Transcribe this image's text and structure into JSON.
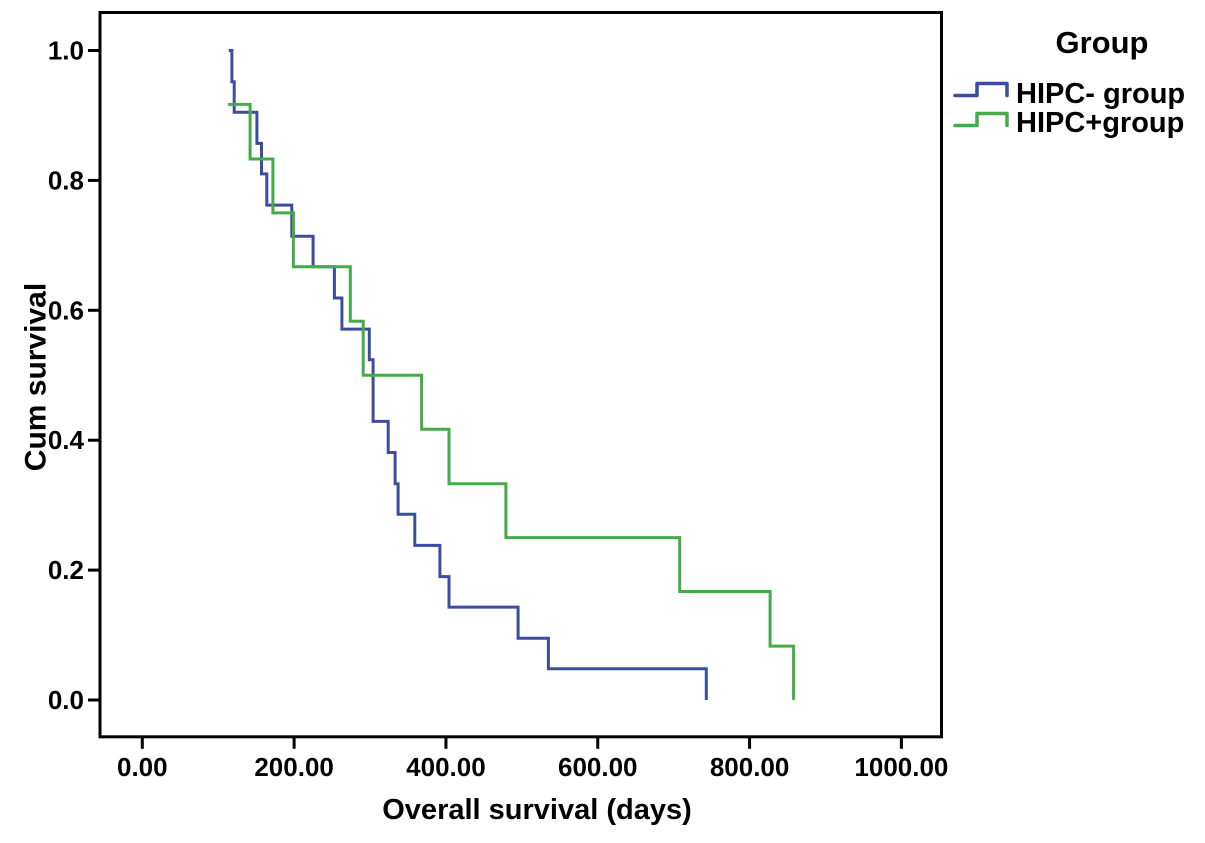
{
  "chart_data": {
    "type": "line",
    "subtype": "kaplan-meier-step-curves",
    "title": "",
    "xlabel": "Overall survival (days)",
    "ylabel": "Cum survival",
    "grid": false,
    "axis_color": "#000000",
    "x_ticks": {
      "values": [
        0,
        200,
        400,
        600,
        800,
        1000
      ],
      "labels": [
        "0.00",
        "200.00",
        "400.00",
        "600.00",
        "800.00",
        "1000.00"
      ]
    },
    "y_ticks": {
      "values": [
        0.0,
        0.2,
        0.4,
        0.6,
        0.8,
        1.0
      ],
      "labels": [
        "0.0",
        "0.2",
        "0.4",
        "0.6",
        "0.8",
        "1.0"
      ]
    },
    "xlim": [
      -56,
      1054
    ],
    "ylim": [
      -0.057,
      1.06
    ],
    "legend": {
      "title": "Group",
      "position": "top-right-outside",
      "entries": [
        {
          "label": "HIPC- group",
          "color": "#3c4da0"
        },
        {
          "label": "HIPC+group",
          "color": "#45ab49"
        }
      ]
    },
    "series": [
      {
        "name": "HIPC- group",
        "color": "#3c4da0",
        "start": {
          "day": 114,
          "survival": 1.0
        },
        "steps": [
          [
            118,
            0.952
          ],
          [
            121,
            0.905
          ],
          [
            151,
            0.857
          ],
          [
            157,
            0.81
          ],
          [
            164,
            0.762
          ],
          [
            197,
            0.714
          ],
          [
            225,
            0.667
          ],
          [
            253,
            0.619
          ],
          [
            263,
            0.571
          ],
          [
            299,
            0.524
          ],
          [
            304,
            0.429
          ],
          [
            324,
            0.381
          ],
          [
            333,
            0.333
          ],
          [
            337,
            0.286
          ],
          [
            359,
            0.238
          ],
          [
            392,
            0.19
          ],
          [
            404,
            0.143
          ],
          [
            495,
            0.095
          ],
          [
            535,
            0.048
          ],
          [
            743,
            0.0
          ]
        ]
      },
      {
        "name": "HIPC+group",
        "color": "#45ab49",
        "start": {
          "day": 113,
          "survival": 0.917
        },
        "steps": [
          [
            142,
            0.833
          ],
          [
            172,
            0.75
          ],
          [
            199,
            0.667
          ],
          [
            274,
            0.583
          ],
          [
            291,
            0.5
          ],
          [
            368,
            0.417
          ],
          [
            404,
            0.333
          ],
          [
            479,
            0.25
          ],
          [
            708,
            0.167
          ],
          [
            827,
            0.083
          ],
          [
            858,
            0.0
          ]
        ]
      }
    ]
  }
}
